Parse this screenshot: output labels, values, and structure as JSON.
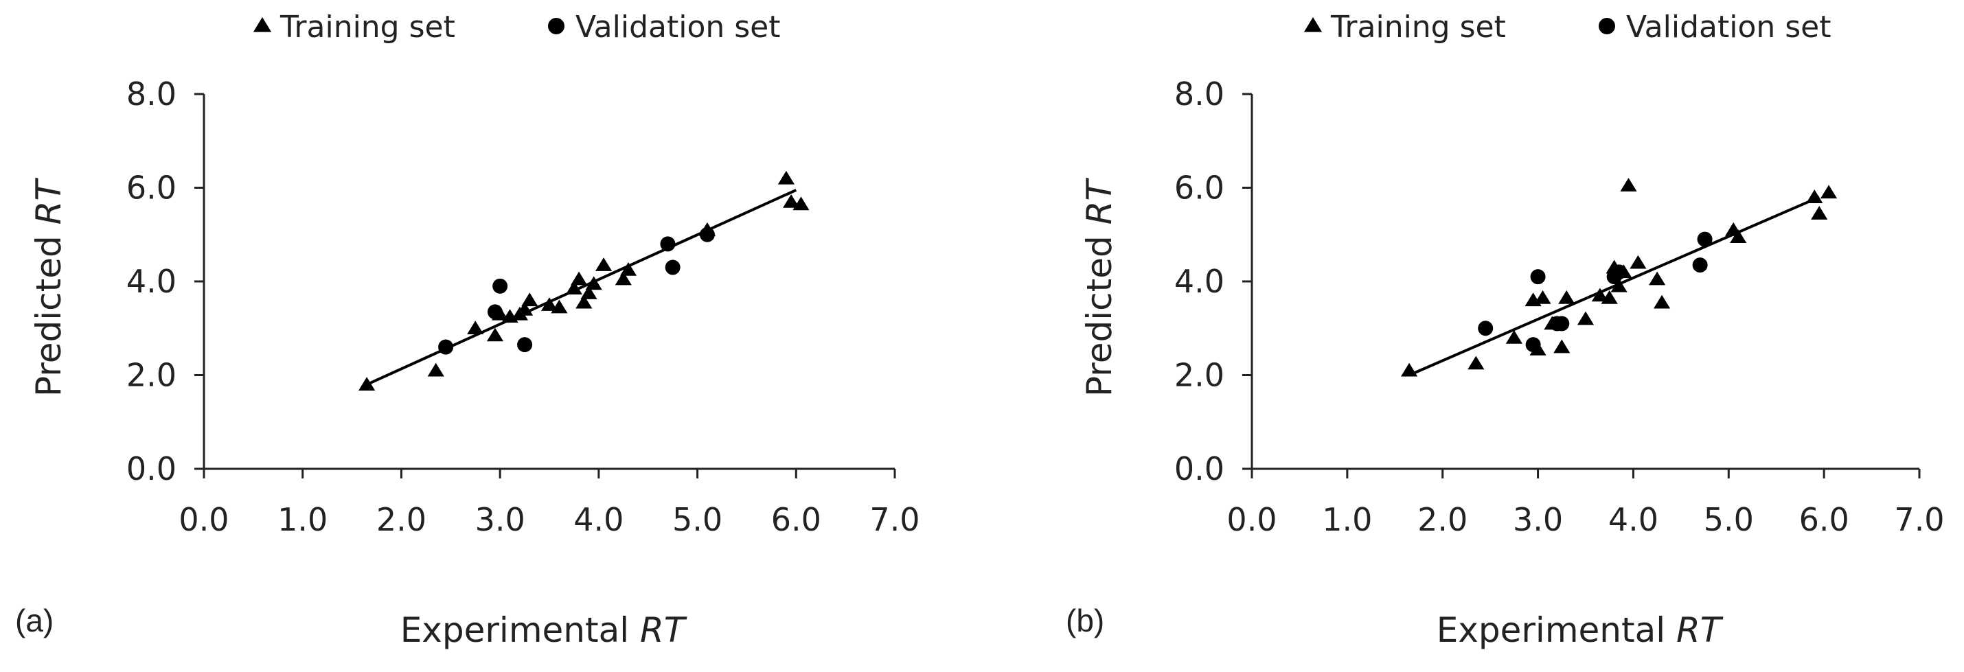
{
  "chart_data": [
    {
      "type": "scatter",
      "panel_label": "(a)",
      "legend": {
        "triangle": "Training set",
        "circle": "Validation set",
        "placement": "top"
      },
      "xlabel": {
        "prefix": "Experimental ",
        "italic": "RT"
      },
      "ylabel": {
        "prefix": "Predicted ",
        "italic": "RT"
      },
      "xlim": [
        0,
        7
      ],
      "ylim": [
        0,
        8
      ],
      "xticks": [
        "0.0",
        "1.0",
        "2.0",
        "3.0",
        "4.0",
        "5.0",
        "6.0",
        "7.0"
      ],
      "yticks": [
        "0.0",
        "2.0",
        "4.0",
        "6.0",
        "8.0"
      ],
      "grid": false,
      "fit_line": {
        "x": [
          1.65,
          6.0
        ],
        "y": [
          1.8,
          5.95
        ]
      },
      "series": [
        {
          "name": "Training set",
          "marker": "triangle",
          "x": [
            1.65,
            2.35,
            2.75,
            2.95,
            3.0,
            3.1,
            3.2,
            3.25,
            3.3,
            3.5,
            3.6,
            3.75,
            3.8,
            3.85,
            3.9,
            3.95,
            4.05,
            4.25,
            4.3,
            5.1,
            5.9,
            5.95,
            6.05
          ],
          "y": [
            1.8,
            2.1,
            3.0,
            2.85,
            3.3,
            3.25,
            3.3,
            3.4,
            3.6,
            3.5,
            3.45,
            3.85,
            4.05,
            3.55,
            3.75,
            3.95,
            4.35,
            4.05,
            4.25,
            5.1,
            6.2,
            5.7,
            5.65
          ]
        },
        {
          "name": "Validation set",
          "marker": "circle",
          "x": [
            2.45,
            2.95,
            3.0,
            3.25,
            4.7,
            4.75,
            5.1
          ],
          "y": [
            2.6,
            3.35,
            3.9,
            2.65,
            4.8,
            4.3,
            5.0
          ]
        }
      ]
    },
    {
      "type": "scatter",
      "panel_label": "(b)",
      "legend": {
        "triangle": "Training set",
        "circle": "Validation set",
        "placement": "top"
      },
      "xlabel": {
        "prefix": "Experimental ",
        "italic": "RT"
      },
      "ylabel": {
        "prefix": "Predicted ",
        "italic": "RT"
      },
      "xlim": [
        0,
        7
      ],
      "ylim": [
        0,
        8
      ],
      "xticks": [
        "0.0",
        "1.0",
        "2.0",
        "3.0",
        "4.0",
        "5.0",
        "6.0",
        "7.0"
      ],
      "yticks": [
        "0.0",
        "2.0",
        "4.0",
        "6.0",
        "8.0"
      ],
      "grid": false,
      "fit_line": {
        "x": [
          1.65,
          5.95
        ],
        "y": [
          2.0,
          5.8
        ]
      },
      "series": [
        {
          "name": "Training set",
          "marker": "triangle",
          "x": [
            1.65,
            2.35,
            2.75,
            2.95,
            3.0,
            3.05,
            3.15,
            3.25,
            3.3,
            3.5,
            3.65,
            3.75,
            3.8,
            3.85,
            3.9,
            3.95,
            4.05,
            4.25,
            4.3,
            5.05,
            5.1,
            5.9,
            5.95,
            6.05
          ],
          "y": [
            2.1,
            2.25,
            2.8,
            3.6,
            2.55,
            3.65,
            3.1,
            2.6,
            3.65,
            3.2,
            3.7,
            3.65,
            4.3,
            3.9,
            4.2,
            6.05,
            4.4,
            4.05,
            3.55,
            5.1,
            4.95,
            5.8,
            5.45,
            5.9
          ]
        },
        {
          "name": "Validation set",
          "marker": "circle",
          "x": [
            2.45,
            2.95,
            3.0,
            3.2,
            3.25,
            3.8,
            3.85,
            4.7,
            4.75
          ],
          "y": [
            3.0,
            2.65,
            4.1,
            3.1,
            3.1,
            4.1,
            4.2,
            4.35,
            4.9
          ]
        }
      ]
    }
  ]
}
